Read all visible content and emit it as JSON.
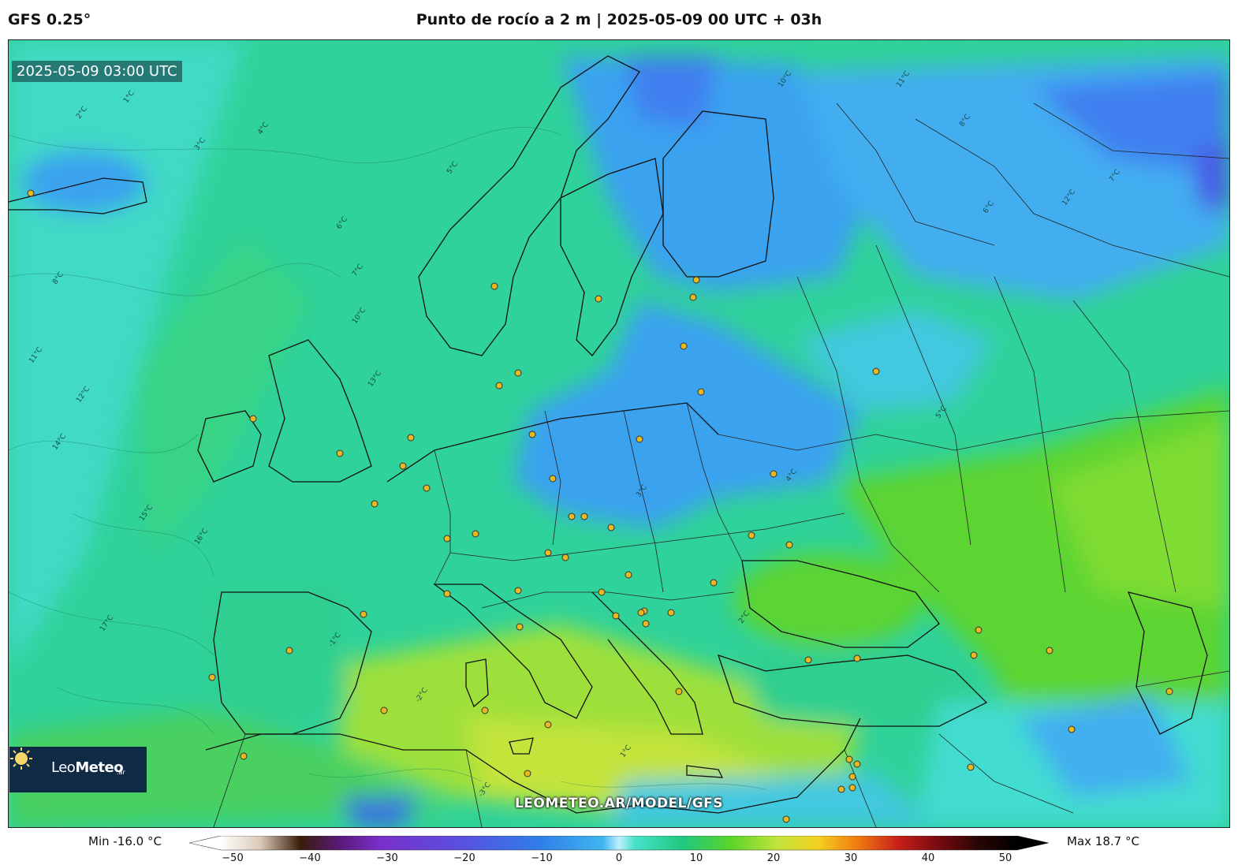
{
  "header": {
    "model": "GFS 0.25°",
    "title": "Punto de rocío a 2 m | 2025-05-09 00 UTC + 03h"
  },
  "map": {
    "timestamp": "2025-05-09 03:00 UTC",
    "watermark": "LEOMETEO.AR/MODEL/GFS",
    "contour_labels": [
      "1°C",
      "2°C",
      "3°C",
      "4°C",
      "5°C",
      "6°C",
      "7°C",
      "8°C",
      "10°C",
      "11°C",
      "12°C",
      "13°C",
      "14°C",
      "15°C",
      "16°C",
      "17°C",
      "-1°C",
      "-2°C",
      "-3°C"
    ],
    "colors": {
      "ocean": "#2fd29a",
      "cold": "#3aa2f0",
      "very_cold": "#3f7ff0",
      "cool": "#43dcd0",
      "warm": "#5cd430",
      "hot": "#b6e43a",
      "border": "#111111",
      "city": "#e8b820"
    }
  },
  "logo": {
    "name_light": "Leo",
    "name_bold": "Meteo",
    "tld": ".ar"
  },
  "legend": {
    "min": "Min -16.0 °C",
    "max": "Max 18.7 °C",
    "ticks": [
      "−50",
      "−40",
      "−30",
      "−20",
      "−10",
      "0",
      "10",
      "20",
      "30",
      "40",
      "50"
    ],
    "range": [
      -50,
      50
    ],
    "stops": [
      {
        "v": -50,
        "c": "#ffffff"
      },
      {
        "v": -45,
        "c": "#d9c9b6"
      },
      {
        "v": -40,
        "c": "#3a1c0a"
      },
      {
        "v": -35,
        "c": "#5a1a7a"
      },
      {
        "v": -30,
        "c": "#7a2fc9"
      },
      {
        "v": -20,
        "c": "#5a4fe0"
      },
      {
        "v": -10,
        "c": "#2f7ee8"
      },
      {
        "v": -2,
        "c": "#3fb6f0"
      },
      {
        "v": 0,
        "c": "#bfefff"
      },
      {
        "v": 2,
        "c": "#46e2c8"
      },
      {
        "v": 8,
        "c": "#1fc880"
      },
      {
        "v": 14,
        "c": "#5ad42a"
      },
      {
        "v": 20,
        "c": "#c4e43a"
      },
      {
        "v": 25,
        "c": "#f5d020"
      },
      {
        "v": 30,
        "c": "#f07a10"
      },
      {
        "v": 35,
        "c": "#c8201a"
      },
      {
        "v": 40,
        "c": "#7a0a10"
      },
      {
        "v": 45,
        "c": "#2a0606"
      },
      {
        "v": 50,
        "c": "#000000"
      }
    ]
  }
}
